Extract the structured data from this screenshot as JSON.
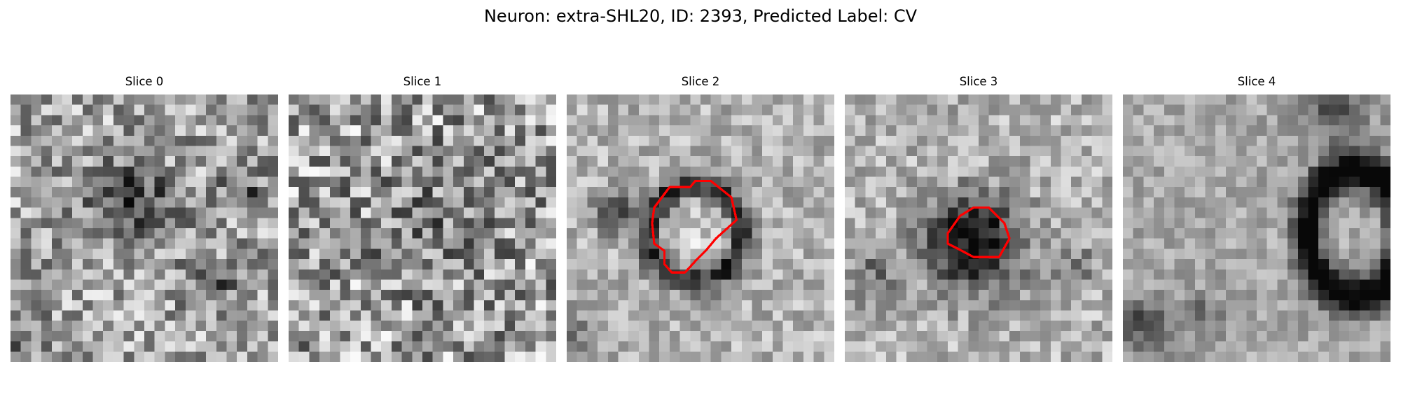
{
  "figure": {
    "title": "Neuron: extra-SHL20, ID: 2393, Predicted Label: CV"
  },
  "panels": [
    {
      "title": "Slice 0",
      "has_contour": false
    },
    {
      "title": "Slice 1",
      "has_contour": false
    },
    {
      "title": "Slice 2",
      "has_contour": true
    },
    {
      "title": "Slice 3",
      "has_contour": true
    },
    {
      "title": "Slice 4",
      "has_contour": false
    }
  ],
  "colors": {
    "contour": "#ff0000",
    "colormap": "grayscale"
  }
}
